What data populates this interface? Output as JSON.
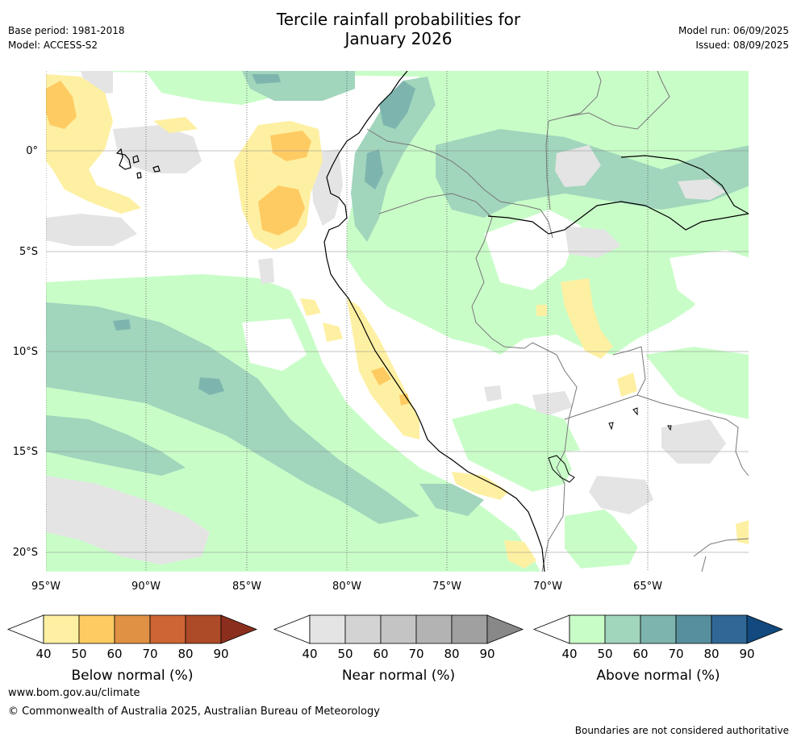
{
  "header": {
    "title_line1": "Tercile rainfall probabilities for",
    "title_line2": "January 2026",
    "base_period": "Base period: 1981-2018",
    "model": "Model: ACCESS-S2",
    "model_run": "Model run: 06/09/2025",
    "issued": "Issued: 08/09/2025"
  },
  "map": {
    "lat_labels": [
      "0°",
      "5°S",
      "10°S",
      "15°S",
      "20°S"
    ],
    "lon_labels": [
      "95°W",
      "90°W",
      "85°W",
      "80°W",
      "75°W",
      "70°W",
      "65°W"
    ]
  },
  "colorbars": [
    {
      "label": "Below normal (%)",
      "ticks": [
        "40",
        "50",
        "60",
        "70",
        "80",
        "90"
      ],
      "colors": [
        "#ffffff",
        "#fef0a2",
        "#fecb63",
        "#e19143",
        "#cd6634",
        "#ad4a28",
        "#8b2e1e"
      ]
    },
    {
      "label": "Near normal (%)",
      "ticks": [
        "40",
        "50",
        "60",
        "70",
        "80",
        "90"
      ],
      "colors": [
        "#ffffff",
        "#e4e4e4",
        "#d3d3d3",
        "#c4c4c4",
        "#b3b3b3",
        "#a0a0a0",
        "#888888"
      ]
    },
    {
      "label": "Above normal (%)",
      "ticks": [
        "40",
        "50",
        "60",
        "70",
        "80",
        "90"
      ],
      "colors": [
        "#ffffff",
        "#c9fdc8",
        "#a1d5bc",
        "#7db5ae",
        "#578f9e",
        "#2f6896",
        "#12497e"
      ]
    }
  ],
  "footer": {
    "url": "www.bom.gov.au/climate",
    "copyright": "© Commonwealth of Australia 2025, Australian Bureau of Meteorology",
    "note": "Boundaries are not considered authoritative"
  }
}
